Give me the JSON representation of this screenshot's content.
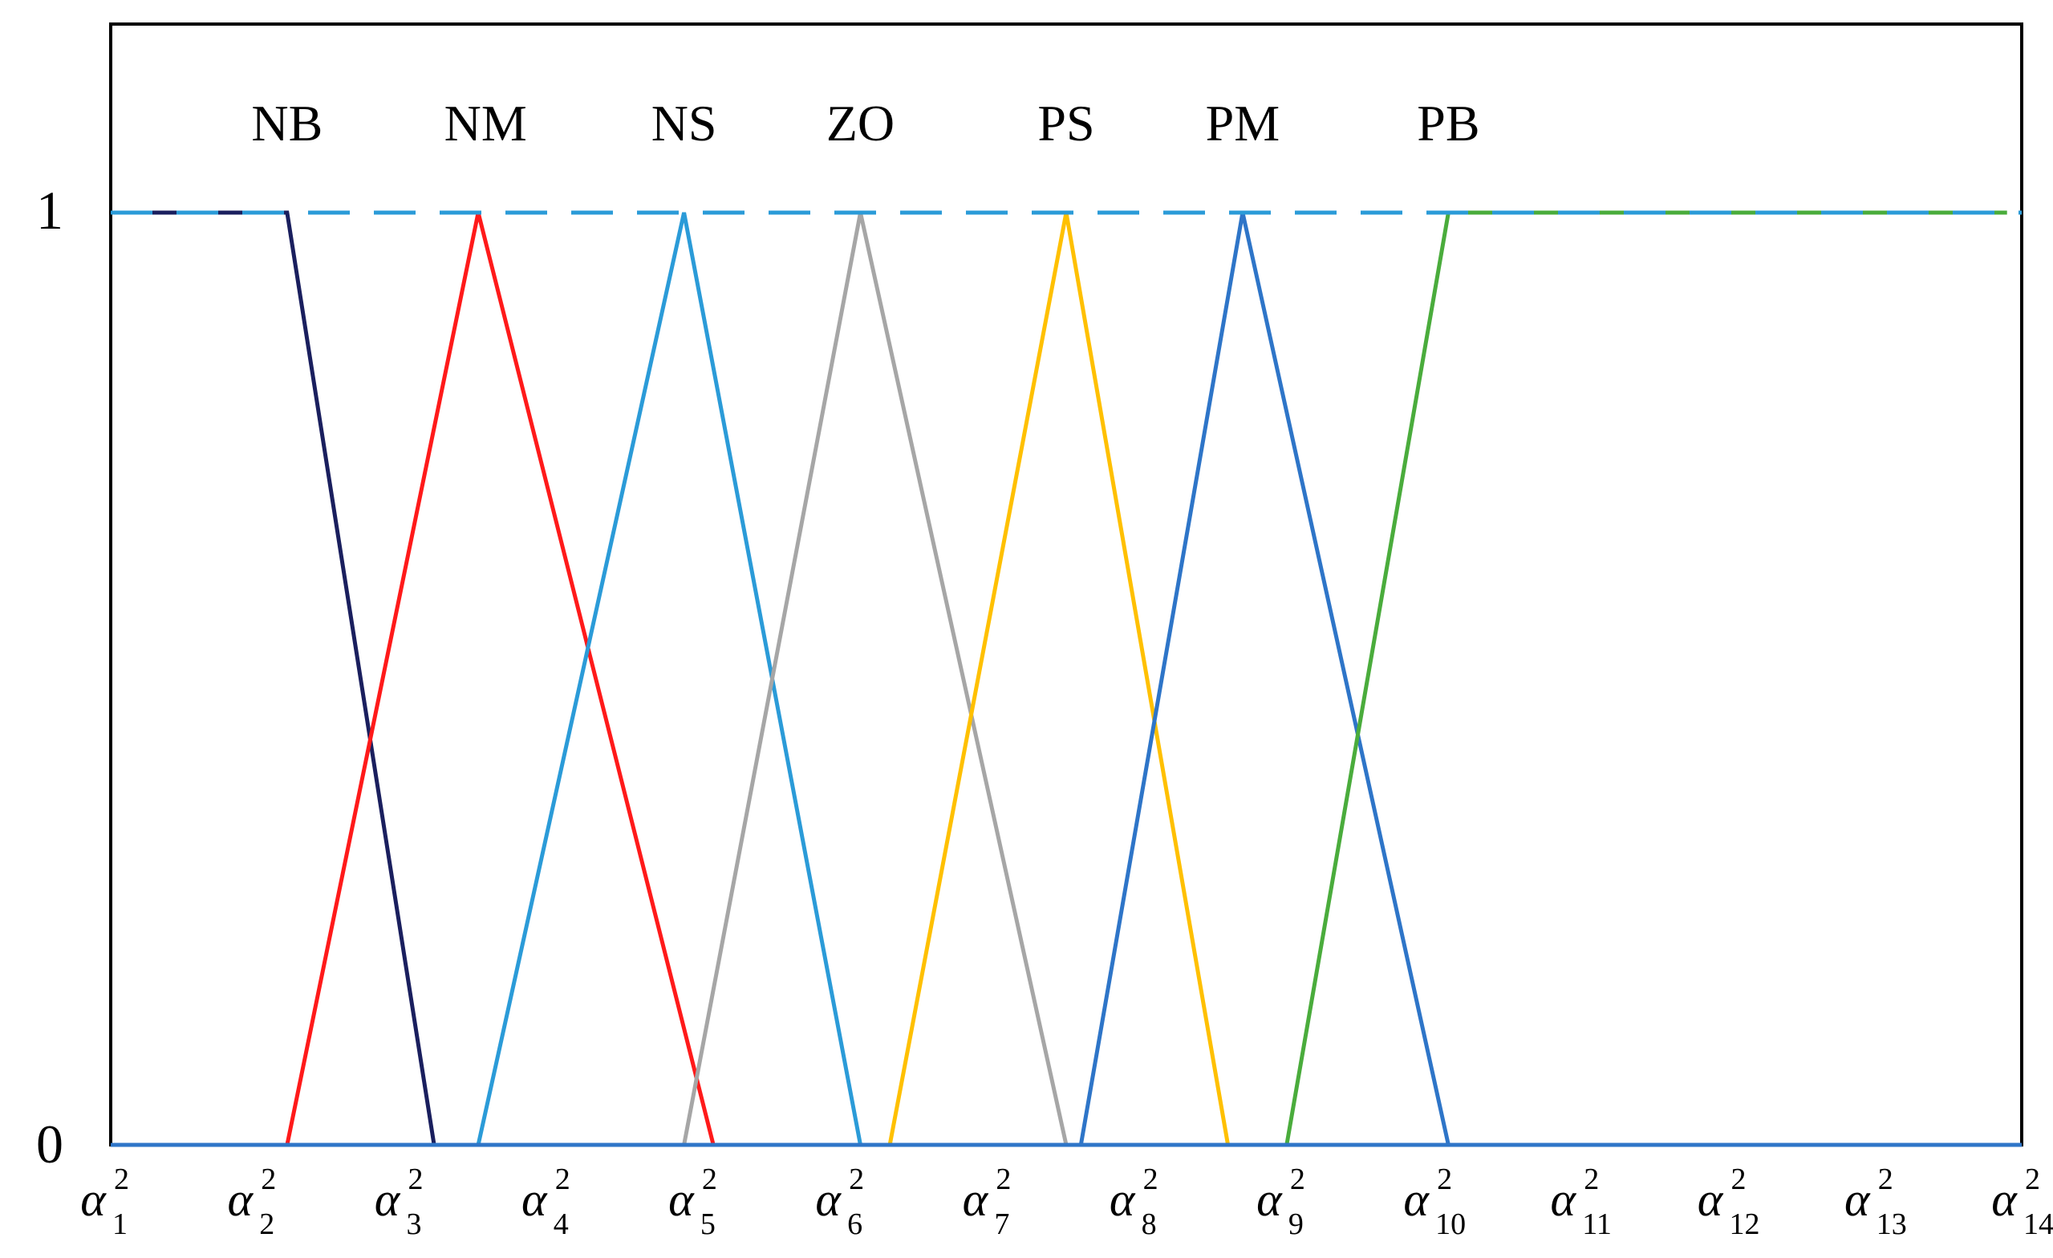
{
  "chart_data": {
    "type": "line",
    "title": "",
    "xlabel": "",
    "ylabel": "",
    "ylim": [
      0,
      1.2
    ],
    "xlim": [
      1,
      14
    ],
    "grid": false,
    "legend": "none",
    "y_ticks": [
      "1",
      "0"
    ],
    "x_ticks": [
      {
        "base": "α",
        "sup": "2",
        "sub": "1",
        "x": 1
      },
      {
        "base": "α",
        "sup": "2",
        "sub": "2",
        "x": 2
      },
      {
        "base": "α",
        "sup": "2",
        "sub": "3",
        "x": 3
      },
      {
        "base": "α",
        "sup": "2",
        "sub": "4",
        "x": 4
      },
      {
        "base": "α",
        "sup": "2",
        "sub": "5",
        "x": 5
      },
      {
        "base": "α",
        "sup": "2",
        "sub": "6",
        "x": 6
      },
      {
        "base": "α",
        "sup": "2",
        "sub": "7",
        "x": 7
      },
      {
        "base": "α",
        "sup": "2",
        "sub": "8",
        "x": 8
      },
      {
        "base": "α",
        "sup": "2",
        "sub": "9",
        "x": 9
      },
      {
        "base": "α",
        "sup": "2",
        "sub": "10",
        "x": 10
      },
      {
        "base": "α",
        "sup": "2",
        "sub": "11",
        "x": 11
      },
      {
        "base": "α",
        "sup": "2",
        "sub": "12",
        "x": 12
      },
      {
        "base": "α",
        "sup": "2",
        "sub": "13",
        "x": 13
      },
      {
        "base": "α",
        "sup": "2",
        "sub": "14",
        "x": 14
      }
    ],
    "reference_line": {
      "y": 1,
      "style": "dashed",
      "color": "#2b9bd8"
    },
    "baseline": {
      "y": 0,
      "color": "#2e75c8"
    },
    "series": [
      {
        "name": "NB",
        "color": "#1a1f5e",
        "x": [
          1,
          2.2,
          3.2
        ],
        "y": [
          1,
          1,
          0
        ],
        "label_x": 2.2
      },
      {
        "name": "NM",
        "color": "#ff1a1a",
        "x": [
          2.2,
          3.5,
          5.1
        ],
        "y": [
          0,
          1,
          0
        ],
        "label_x": 3.55
      },
      {
        "name": "NS",
        "color": "#2b9bd8",
        "x": [
          3.5,
          4.9,
          6.1
        ],
        "y": [
          0,
          1,
          0
        ],
        "label_x": 4.9
      },
      {
        "name": "ZO",
        "color": "#a6a6a6",
        "x": [
          4.9,
          6.1,
          7.5
        ],
        "y": [
          0,
          1,
          0
        ],
        "label_x": 6.1
      },
      {
        "name": "PS",
        "color": "#ffc000",
        "x": [
          6.3,
          7.5,
          8.6
        ],
        "y": [
          0,
          1,
          0
        ],
        "label_x": 7.5
      },
      {
        "name": "PM",
        "color": "#2e75c8",
        "x": [
          7.6,
          8.7,
          10.1
        ],
        "y": [
          0,
          1,
          0
        ],
        "label_x": 8.7
      },
      {
        "name": "PB",
        "color": "#4aac3c",
        "x": [
          9.0,
          10.1,
          13.9
        ],
        "y": [
          0,
          1,
          1
        ],
        "label_x": 10.1
      }
    ]
  }
}
